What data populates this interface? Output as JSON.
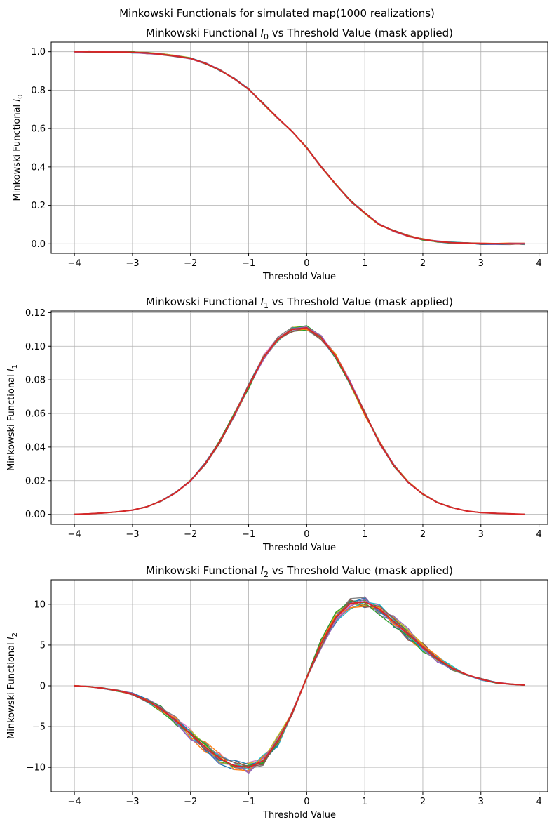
{
  "figure": {
    "suptitle": "Minkowski Functionals for simulated map(1000 realizations)"
  },
  "chart_data": [
    {
      "type": "line",
      "title_prefix": "Minkowski Functional ",
      "title_symbol": "I",
      "title_subscript": "0",
      "title_suffix": " vs Threshold Value (mask applied)",
      "xlabel": "Threshold Value",
      "ylabel_prefix": "Minkowski Functional ",
      "ylabel_symbol": "I",
      "ylabel_subscript": "0",
      "xlim": [
        -4.4,
        4.15
      ],
      "ylim": [
        -0.05,
        1.05
      ],
      "xticks": [
        -4,
        -3,
        -2,
        -1,
        0,
        1,
        2,
        3,
        4
      ],
      "yticks": [
        0.0,
        0.2,
        0.4,
        0.6,
        0.8,
        1.0
      ],
      "ytick_labels": [
        "0.0",
        "0.2",
        "0.4",
        "0.6",
        "0.8",
        "1.0"
      ],
      "grid": true,
      "x": [
        -4.0,
        -3.75,
        -3.5,
        -3.25,
        -3.0,
        -2.75,
        -2.5,
        -2.25,
        -2.0,
        -1.75,
        -1.5,
        -1.25,
        -1.0,
        -0.75,
        -0.5,
        -0.25,
        0.0,
        0.25,
        0.5,
        0.75,
        1.0,
        1.25,
        1.5,
        1.75,
        2.0,
        2.25,
        2.5,
        2.75,
        3.0,
        3.25,
        3.5,
        3.75
      ],
      "series": [
        {
          "color": "#d62728",
          "values": [
            1.0,
            1.0,
            0.999,
            0.998,
            0.997,
            0.993,
            0.987,
            0.977,
            0.965,
            0.94,
            0.905,
            0.86,
            0.805,
            0.73,
            0.655,
            0.585,
            0.5,
            0.4,
            0.31,
            0.225,
            0.16,
            0.1,
            0.067,
            0.04,
            0.023,
            0.012,
            0.006,
            0.003,
            0.001,
            0.0005,
            0.0002,
            0.0
          ]
        }
      ]
    },
    {
      "type": "line",
      "title_prefix": "Minkowski Functional ",
      "title_symbol": "I",
      "title_subscript": "1",
      "title_suffix": " vs Threshold Value (mask applied)",
      "xlabel": "Threshold Value",
      "ylabel_prefix": "Minkowski Functional ",
      "ylabel_symbol": "I",
      "ylabel_subscript": "1",
      "xlim": [
        -4.4,
        4.15
      ],
      "ylim": [
        -0.006,
        0.121
      ],
      "xticks": [
        -4,
        -3,
        -2,
        -1,
        0,
        1,
        2,
        3,
        4
      ],
      "yticks": [
        0.0,
        0.02,
        0.04,
        0.06,
        0.08,
        0.1,
        0.12
      ],
      "ytick_labels": [
        "0.00",
        "0.02",
        "0.04",
        "0.06",
        "0.08",
        "0.10",
        "0.12"
      ],
      "grid": true,
      "x": [
        -4.0,
        -3.75,
        -3.5,
        -3.25,
        -3.0,
        -2.75,
        -2.5,
        -2.25,
        -2.0,
        -1.75,
        -1.5,
        -1.25,
        -1.0,
        -0.75,
        -0.5,
        -0.25,
        0.0,
        0.25,
        0.5,
        0.75,
        1.0,
        1.25,
        1.5,
        1.75,
        2.0,
        2.25,
        2.5,
        2.75,
        3.0,
        3.25,
        3.5,
        3.75
      ],
      "series": [
        {
          "color": "#d62728",
          "values": [
            0.0,
            0.0003,
            0.0008,
            0.0015,
            0.0025,
            0.0045,
            0.008,
            0.013,
            0.02,
            0.03,
            0.043,
            0.059,
            0.076,
            0.093,
            0.104,
            0.11,
            0.111,
            0.105,
            0.094,
            0.078,
            0.06,
            0.043,
            0.029,
            0.019,
            0.012,
            0.007,
            0.004,
            0.002,
            0.001,
            0.0006,
            0.0003,
            0.0
          ]
        }
      ]
    },
    {
      "type": "line",
      "title_prefix": "Minkowski Functional ",
      "title_symbol": "I",
      "title_subscript": "2",
      "title_suffix": " vs Threshold Value (mask applied)",
      "xlabel": "Threshold Value",
      "ylabel_prefix": "Minkowski Functional ",
      "ylabel_symbol": "I",
      "ylabel_subscript": "2",
      "xlim": [
        -4.4,
        4.15
      ],
      "ylim": [
        -13.0,
        13.0
      ],
      "xticks": [
        -4,
        -3,
        -2,
        -1,
        0,
        1,
        2,
        3,
        4
      ],
      "yticks": [
        -10,
        -5,
        0,
        5,
        10
      ],
      "ytick_labels": [
        "−10",
        "−5",
        "0",
        "5",
        "10"
      ],
      "grid": true,
      "x": [
        -4.0,
        -3.75,
        -3.5,
        -3.25,
        -3.0,
        -2.75,
        -2.5,
        -2.25,
        -2.0,
        -1.75,
        -1.5,
        -1.25,
        -1.0,
        -0.75,
        -0.5,
        -0.25,
        0.0,
        0.25,
        0.5,
        0.75,
        1.0,
        1.25,
        1.5,
        1.75,
        2.0,
        2.25,
        2.5,
        2.75,
        3.0,
        3.25,
        3.5,
        3.75
      ],
      "series": [
        {
          "color": "#d62728",
          "values": [
            0.0,
            -0.1,
            -0.3,
            -0.6,
            -1.0,
            -1.8,
            -2.9,
            -4.3,
            -5.9,
            -7.5,
            -8.9,
            -9.8,
            -10.0,
            -9.2,
            -6.8,
            -3.3,
            1.0,
            5.2,
            8.4,
            10.1,
            10.3,
            9.4,
            7.9,
            6.3,
            4.7,
            3.3,
            2.2,
            1.4,
            0.8,
            0.4,
            0.2,
            0.1
          ]
        }
      ]
    }
  ]
}
